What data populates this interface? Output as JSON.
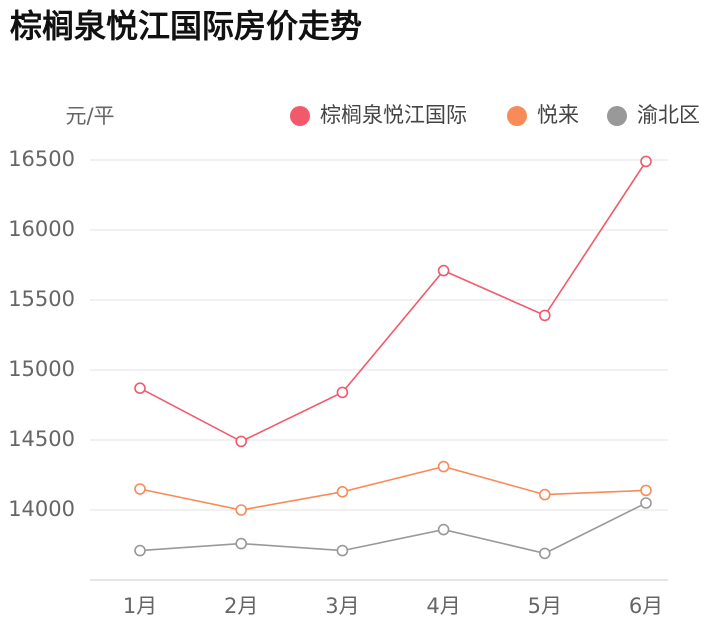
{
  "chart_data": {
    "type": "line",
    "title": "棕榈泉悦江国际房价走势",
    "y_label": "元/平",
    "categories": [
      "1月",
      "2月",
      "3月",
      "4月",
      "5月",
      "6月"
    ],
    "series": [
      {
        "name": "棕榈泉悦江国际",
        "color": "#f25a6c",
        "values": [
          14870,
          14490,
          14840,
          15710,
          15390,
          16490
        ]
      },
      {
        "name": "悦来",
        "color": "#f98b58",
        "values": [
          14150,
          14000,
          14130,
          14310,
          14110,
          14140
        ]
      },
      {
        "name": "渝北区",
        "color": "#999999",
        "values": [
          13710,
          13760,
          13710,
          13860,
          13690,
          14050
        ]
      }
    ],
    "ylim": [
      13500,
      16500
    ],
    "yticks": [
      14000,
      14500,
      15000,
      15500,
      16000,
      16500
    ],
    "grid": true
  }
}
